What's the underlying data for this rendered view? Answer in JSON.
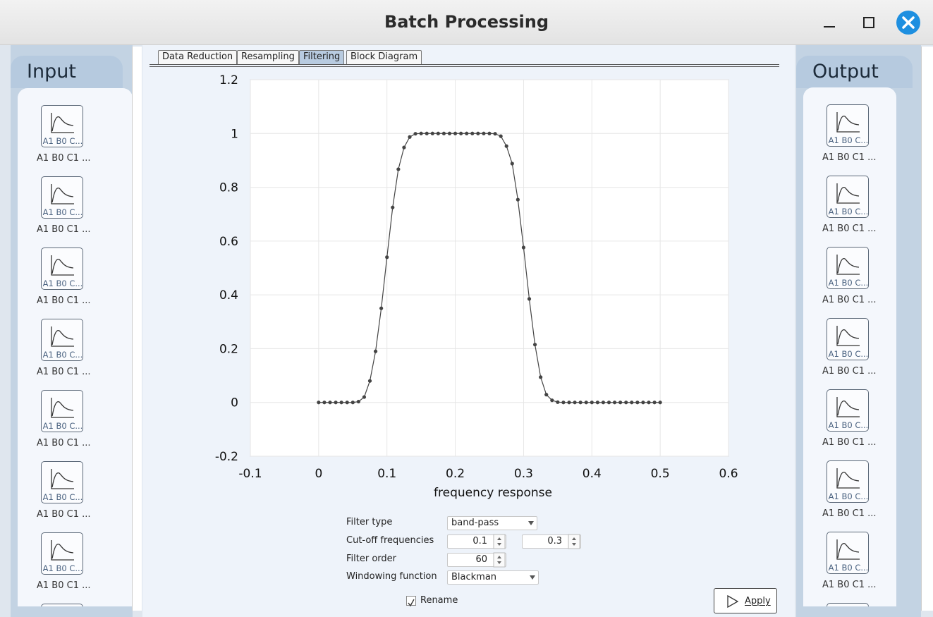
{
  "window": {
    "title": "Batch Processing"
  },
  "tabs": [
    {
      "label": "Data Reduction",
      "selected": false
    },
    {
      "label": "Resampling",
      "selected": false
    },
    {
      "label": "Filtering",
      "selected": true
    },
    {
      "label": "Block Diagram",
      "selected": false
    }
  ],
  "input_panel": {
    "title": "Input",
    "items": [
      {
        "icon_text": "A1 B0 C...",
        "label": "A1 B0 C1 ..."
      },
      {
        "icon_text": "A1 B0 C...",
        "label": "A1 B0 C1 ..."
      },
      {
        "icon_text": "A1 B0 C...",
        "label": "A1 B0 C1 ..."
      },
      {
        "icon_text": "A1 B0 C...",
        "label": "A1 B0 C1 ..."
      },
      {
        "icon_text": "A1 B0 C...",
        "label": "A1 B0 C1 ..."
      },
      {
        "icon_text": "A1 B0 C...",
        "label": "A1 B0 C1 ..."
      },
      {
        "icon_text": "A1 B0 C...",
        "label": "A1 B0 C1 ..."
      }
    ]
  },
  "output_panel": {
    "title": "Output",
    "items": [
      {
        "icon_text": "A1 B0 C...",
        "label": "A1 B0 C1 ..."
      },
      {
        "icon_text": "A1 B0 C...",
        "label": "A1 B0 C1 ..."
      },
      {
        "icon_text": "A1 B0 C...",
        "label": "A1 B0 C1 ..."
      },
      {
        "icon_text": "A1 B0 C...",
        "label": "A1 B0 C1 ..."
      },
      {
        "icon_text": "A1 B0 C...",
        "label": "A1 B0 C1 ..."
      },
      {
        "icon_text": "A1 B0 C...",
        "label": "A1 B0 C1 ..."
      },
      {
        "icon_text": "A1 B0 C...",
        "label": "A1 B0 C1 ..."
      }
    ]
  },
  "chart_data": {
    "type": "line",
    "xlabel": "frequency response",
    "x": [
      0,
      0.00833,
      0.01667,
      0.025,
      0.03333,
      0.04167,
      0.05,
      0.05833,
      0.06667,
      0.075,
      0.08333,
      0.09167,
      0.1,
      0.10833,
      0.11667,
      0.125,
      0.13333,
      0.14167,
      0.15,
      0.15833,
      0.16667,
      0.175,
      0.18333,
      0.19167,
      0.2,
      0.20833,
      0.21667,
      0.225,
      0.23333,
      0.24167,
      0.25,
      0.25833,
      0.26667,
      0.275,
      0.28333,
      0.29167,
      0.3,
      0.30833,
      0.31667,
      0.325,
      0.33333,
      0.34167,
      0.35,
      0.35833,
      0.36667,
      0.375,
      0.38333,
      0.39167,
      0.4,
      0.40833,
      0.41667,
      0.425,
      0.43333,
      0.44167,
      0.45,
      0.45833,
      0.46667,
      0.475,
      0.48333,
      0.49167,
      0.5
    ],
    "values": [
      0,
      0,
      0,
      0,
      0,
      0,
      0,
      0.003,
      0.02,
      0.08,
      0.19,
      0.35,
      0.54,
      0.725,
      0.867,
      0.948,
      0.987,
      0.999,
      1,
      1,
      1,
      1,
      1,
      1,
      1,
      1,
      1,
      1,
      1,
      1,
      1,
      0.999,
      0.99,
      0.953,
      0.888,
      0.754,
      0.576,
      0.385,
      0.215,
      0.094,
      0.029,
      0.008,
      0.001,
      0,
      0,
      0,
      0,
      0,
      0,
      0,
      0,
      0,
      0,
      0,
      0,
      0,
      0,
      0,
      0,
      0,
      0
    ],
    "color": "#444444",
    "xlim": [
      -0.1,
      0.6
    ],
    "xticks": [
      -0.1,
      0,
      0.1,
      0.2,
      0.3,
      0.4,
      0.5,
      0.6
    ],
    "ylim": [
      -0.2,
      1.2
    ],
    "yticks": [
      -0.2,
      0,
      0.2,
      0.4,
      0.6,
      0.8,
      1,
      1.2
    ],
    "grid": true
  },
  "form": {
    "filter_type": {
      "label": "Filter type",
      "value": "band-pass"
    },
    "cutoff": {
      "label": "Cut-off frequencies",
      "values": [
        0.1,
        0.3
      ]
    },
    "filter_order": {
      "label": "Filter order",
      "value": 60
    },
    "windowing": {
      "label": "Windowing function",
      "value": "Blackman"
    },
    "rename": {
      "label": "Rename",
      "checked": true
    },
    "apply": "Apply"
  }
}
